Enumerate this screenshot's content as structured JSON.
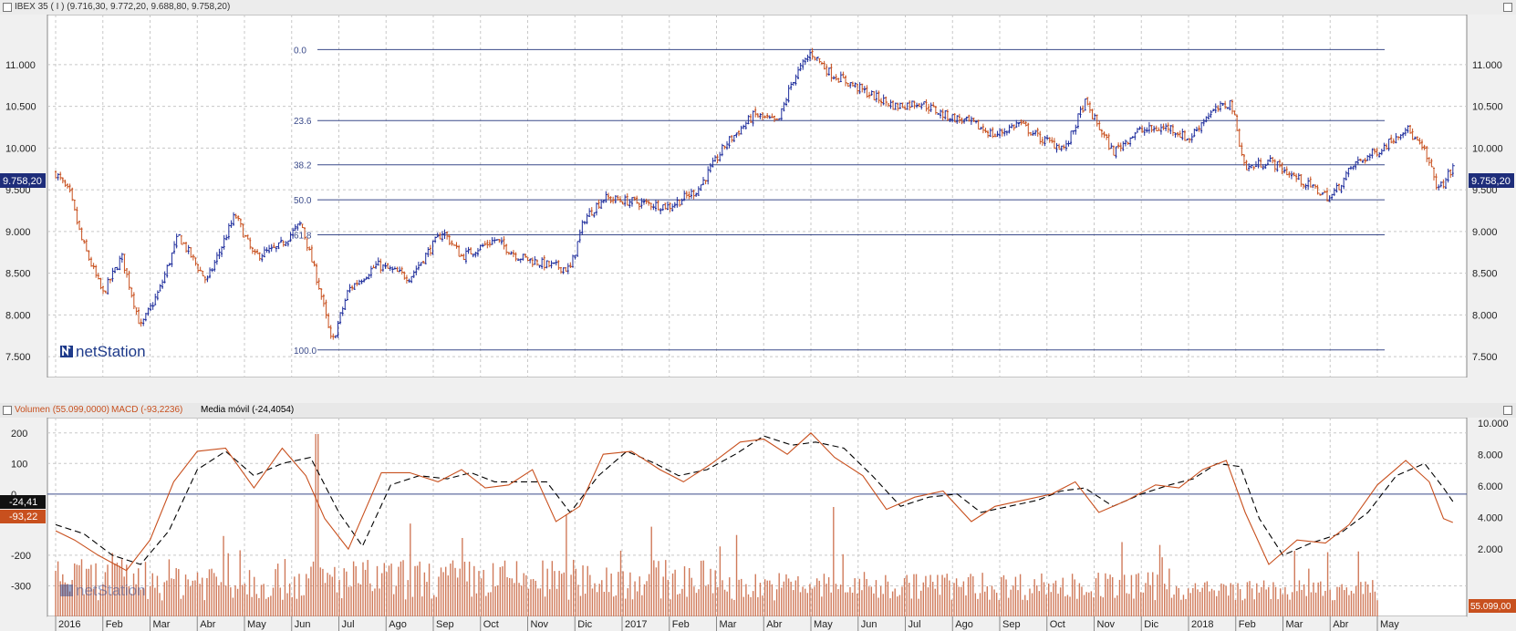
{
  "price_panel": {
    "title": "IBEX 35 ( I ) (9.716,30, 9.772,20, 9.688,80, 9.758,20)",
    "last_value_label": "9.758,20",
    "fib_labels": [
      "0.0",
      "23.6",
      "38.2",
      "50.0",
      "61.8",
      "100.0"
    ]
  },
  "indicator_panel": {
    "legend_volume": "Volumen (55.099,0000)",
    "legend_macd": "MACD (-93,2236)",
    "legend_ma": "Media móvil (-24,4054)",
    "ma_value_label": "-24,41",
    "macd_value_label": "-93,22",
    "volume_value_label": "55.099,00"
  },
  "watermark": {
    "text": "netStation"
  },
  "colors": {
    "up": "#1e2d9c",
    "down": "#c8501e",
    "macd": "#c8501e",
    "signal": "#000000",
    "fib": "#3a4a8a",
    "volume": "#d07a5a"
  },
  "chart_data": [
    {
      "type": "candlestick",
      "title": "IBEX 35 ( I )",
      "y_ticks": [
        "11.000",
        "10.500",
        "10.000",
        "9.500",
        "9.000",
        "8.500",
        "8.000",
        "7.500"
      ],
      "x_labels": [
        "2016",
        "Feb",
        "Mar",
        "Abr",
        "May",
        "Jun",
        "Jul",
        "Ago",
        "Sep",
        "Oct",
        "Nov",
        "Dic",
        "2017",
        "Feb",
        "Mar",
        "Abr",
        "May",
        "Jun",
        "Jul",
        "Ago",
        "Sep",
        "Oct",
        "Nov",
        "Dic",
        "2018",
        "Feb",
        "Mar",
        "Abr",
        "May"
      ],
      "ylim": [
        7250,
        11600
      ],
      "last_close": 9758.2,
      "fibonacci": [
        {
          "label": "0.0",
          "value": 11180
        },
        {
          "label": "23.6",
          "value": 10330
        },
        {
          "label": "38.2",
          "value": 9800
        },
        {
          "label": "50.0",
          "value": 9380
        },
        {
          "label": "61.8",
          "value": 8960
        },
        {
          "label": "100.0",
          "value": 7580
        }
      ],
      "close_path": [
        [
          0,
          9700
        ],
        [
          0.3,
          9450
        ],
        [
          0.55,
          8900
        ],
        [
          1,
          8250
        ],
        [
          1.4,
          8700
        ],
        [
          1.8,
          7850
        ],
        [
          2.2,
          8300
        ],
        [
          2.6,
          8950
        ],
        [
          3.2,
          8400
        ],
        [
          3.8,
          9200
        ],
        [
          4.2,
          8700
        ],
        [
          4.7,
          8800
        ],
        [
          5.2,
          9100
        ],
        [
          5.6,
          8300
        ],
        [
          5.85,
          7650
        ],
        [
          6.2,
          8300
        ],
        [
          6.8,
          8600
        ],
        [
          7.5,
          8450
        ],
        [
          8.2,
          9000
        ],
        [
          8.6,
          8700
        ],
        [
          9.3,
          8900
        ],
        [
          9.8,
          8700
        ],
        [
          10.4,
          8600
        ],
        [
          10.9,
          8550
        ],
        [
          11.2,
          9150
        ],
        [
          11.6,
          9400
        ],
        [
          12.3,
          9350
        ],
        [
          13.0,
          9300
        ],
        [
          13.6,
          9500
        ],
        [
          14.2,
          10050
        ],
        [
          14.8,
          10400
        ],
        [
          15.3,
          10300
        ],
        [
          15.6,
          10800
        ],
        [
          16.0,
          11150
        ],
        [
          16.4,
          10900
        ],
        [
          16.9,
          10750
        ],
        [
          17.4,
          10600
        ],
        [
          17.8,
          10500
        ],
        [
          18.3,
          10550
        ],
        [
          18.8,
          10400
        ],
        [
          19.4,
          10300
        ],
        [
          19.9,
          10150
        ],
        [
          20.4,
          10300
        ],
        [
          20.9,
          10100
        ],
        [
          21.4,
          10000
        ],
        [
          21.8,
          10550
        ],
        [
          22.4,
          9950
        ],
        [
          22.9,
          10200
        ],
        [
          23.6,
          10250
        ],
        [
          24.0,
          10100
        ],
        [
          24.4,
          10400
        ],
        [
          24.9,
          10550
        ],
        [
          25.2,
          9750
        ],
        [
          25.7,
          9850
        ],
        [
          26.4,
          9600
        ],
        [
          27.0,
          9400
        ],
        [
          27.5,
          9800
        ],
        [
          28.1,
          10000
        ],
        [
          28.6,
          10250
        ],
        [
          29.0,
          9950
        ],
        [
          29.3,
          9500
        ],
        [
          29.6,
          9758
        ]
      ]
    },
    {
      "type": "macd",
      "y_ticks_left": [
        "200",
        "100",
        "0",
        "-200",
        "-300"
      ],
      "y_ticks_right": [
        "10.000",
        "8.000",
        "6.000",
        "4.000",
        "2.000"
      ],
      "ylim": [
        -400,
        250
      ],
      "macd": [
        [
          0,
          -120
        ],
        [
          0.4,
          -150
        ],
        [
          0.9,
          -200
        ],
        [
          1.5,
          -250
        ],
        [
          2.0,
          -150
        ],
        [
          2.5,
          40
        ],
        [
          3.0,
          140
        ],
        [
          3.6,
          150
        ],
        [
          4.2,
          20
        ],
        [
          4.8,
          150
        ],
        [
          5.3,
          60
        ],
        [
          5.7,
          -80
        ],
        [
          6.2,
          -180
        ],
        [
          6.9,
          70
        ],
        [
          7.5,
          70
        ],
        [
          8.1,
          40
        ],
        [
          8.6,
          80
        ],
        [
          9.1,
          20
        ],
        [
          9.6,
          30
        ],
        [
          10.1,
          80
        ],
        [
          10.6,
          -90
        ],
        [
          11.1,
          -40
        ],
        [
          11.6,
          130
        ],
        [
          12.2,
          140
        ],
        [
          12.8,
          80
        ],
        [
          13.3,
          40
        ],
        [
          13.9,
          100
        ],
        [
          14.5,
          170
        ],
        [
          15.0,
          180
        ],
        [
          15.5,
          130
        ],
        [
          16.0,
          200
        ],
        [
          16.5,
          120
        ],
        [
          17.1,
          60
        ],
        [
          17.6,
          -50
        ],
        [
          18.2,
          -10
        ],
        [
          18.8,
          10
        ],
        [
          19.4,
          -90
        ],
        [
          19.9,
          -40
        ],
        [
          20.5,
          -20
        ],
        [
          21.1,
          0
        ],
        [
          21.6,
          40
        ],
        [
          22.1,
          -60
        ],
        [
          22.7,
          -20
        ],
        [
          23.3,
          30
        ],
        [
          23.8,
          20
        ],
        [
          24.3,
          80
        ],
        [
          24.8,
          110
        ],
        [
          25.2,
          -60
        ],
        [
          25.7,
          -230
        ],
        [
          26.3,
          -150
        ],
        [
          26.9,
          -160
        ],
        [
          27.4,
          -100
        ],
        [
          28.0,
          30
        ],
        [
          28.6,
          110
        ],
        [
          29.1,
          40
        ],
        [
          29.4,
          -80
        ],
        [
          29.6,
          -93
        ]
      ],
      "signal": [
        [
          0,
          -100
        ],
        [
          0.6,
          -130
        ],
        [
          1.2,
          -200
        ],
        [
          1.8,
          -230
        ],
        [
          2.4,
          -120
        ],
        [
          3.0,
          80
        ],
        [
          3.6,
          140
        ],
        [
          4.2,
          60
        ],
        [
          4.8,
          100
        ],
        [
          5.4,
          120
        ],
        [
          6.0,
          -60
        ],
        [
          6.5,
          -170
        ],
        [
          7.1,
          30
        ],
        [
          7.7,
          60
        ],
        [
          8.3,
          50
        ],
        [
          8.8,
          70
        ],
        [
          9.3,
          40
        ],
        [
          9.8,
          40
        ],
        [
          10.4,
          40
        ],
        [
          10.9,
          -60
        ],
        [
          11.5,
          60
        ],
        [
          12.1,
          140
        ],
        [
          12.7,
          100
        ],
        [
          13.2,
          60
        ],
        [
          13.8,
          80
        ],
        [
          14.4,
          130
        ],
        [
          15.0,
          190
        ],
        [
          15.6,
          160
        ],
        [
          16.1,
          170
        ],
        [
          16.7,
          150
        ],
        [
          17.3,
          60
        ],
        [
          17.9,
          -40
        ],
        [
          18.5,
          -10
        ],
        [
          19.1,
          0
        ],
        [
          19.6,
          -60
        ],
        [
          20.2,
          -40
        ],
        [
          20.8,
          -20
        ],
        [
          21.3,
          10
        ],
        [
          21.8,
          20
        ],
        [
          22.4,
          -40
        ],
        [
          23.0,
          0
        ],
        [
          23.6,
          30
        ],
        [
          24.1,
          50
        ],
        [
          24.6,
          100
        ],
        [
          25.1,
          90
        ],
        [
          25.5,
          -80
        ],
        [
          26.0,
          -200
        ],
        [
          26.6,
          -160
        ],
        [
          27.2,
          -130
        ],
        [
          27.8,
          -60
        ],
        [
          28.4,
          60
        ],
        [
          29.0,
          100
        ],
        [
          29.4,
          20
        ],
        [
          29.6,
          -24.41
        ]
      ]
    },
    {
      "type": "bar",
      "series": [
        {
          "name": "Volumen",
          "last_value": 55099.0
        }
      ],
      "ylim": [
        0,
        12000
      ]
    }
  ]
}
